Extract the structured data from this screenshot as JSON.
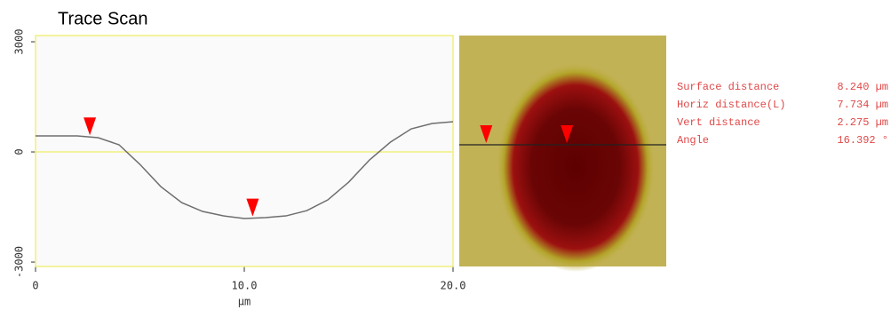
{
  "chart_data": {
    "type": "line",
    "title": "Trace Scan",
    "x_label": "µm",
    "x": [
      0,
      1,
      2,
      3,
      4,
      5,
      6,
      7,
      8,
      9,
      10,
      11,
      12,
      13,
      14,
      15,
      16,
      17,
      18,
      19,
      20
    ],
    "series": [
      {
        "color": "#6e6e6e",
        "values": [
          435,
          435,
          435,
          387,
          194,
          -339,
          -944,
          -1379,
          -1621,
          -1742,
          -1814,
          -1790,
          -1742,
          -1597,
          -1306,
          -823,
          -218,
          266,
          629,
          774,
          822
        ]
      }
    ],
    "xlim": [
      0,
      20
    ],
    "xticks": [
      0,
      {
        "value": 10,
        "label": "10.0"
      },
      {
        "value": 20,
        "label": "20.0"
      }
    ],
    "ylim": [
      -3120,
      3170
    ],
    "yticks": [
      -3000,
      0,
      3000
    ],
    "zero_line_color": "#f0f080",
    "frame_color": "#f0f080",
    "marker_color": "#ff0000",
    "markers": [
      {
        "x": 2.6
      },
      {
        "x": 10.4
      }
    ],
    "readouts": [
      {
        "label": "Surface distance",
        "value": "8.240 µm"
      },
      {
        "label": "Horiz distance(L)",
        "value": "7.734 µm"
      },
      {
        "label": "Vert distance",
        "value": "2.275 µm"
      },
      {
        "label": "Angle",
        "value": "16.392 °"
      }
    ]
  }
}
